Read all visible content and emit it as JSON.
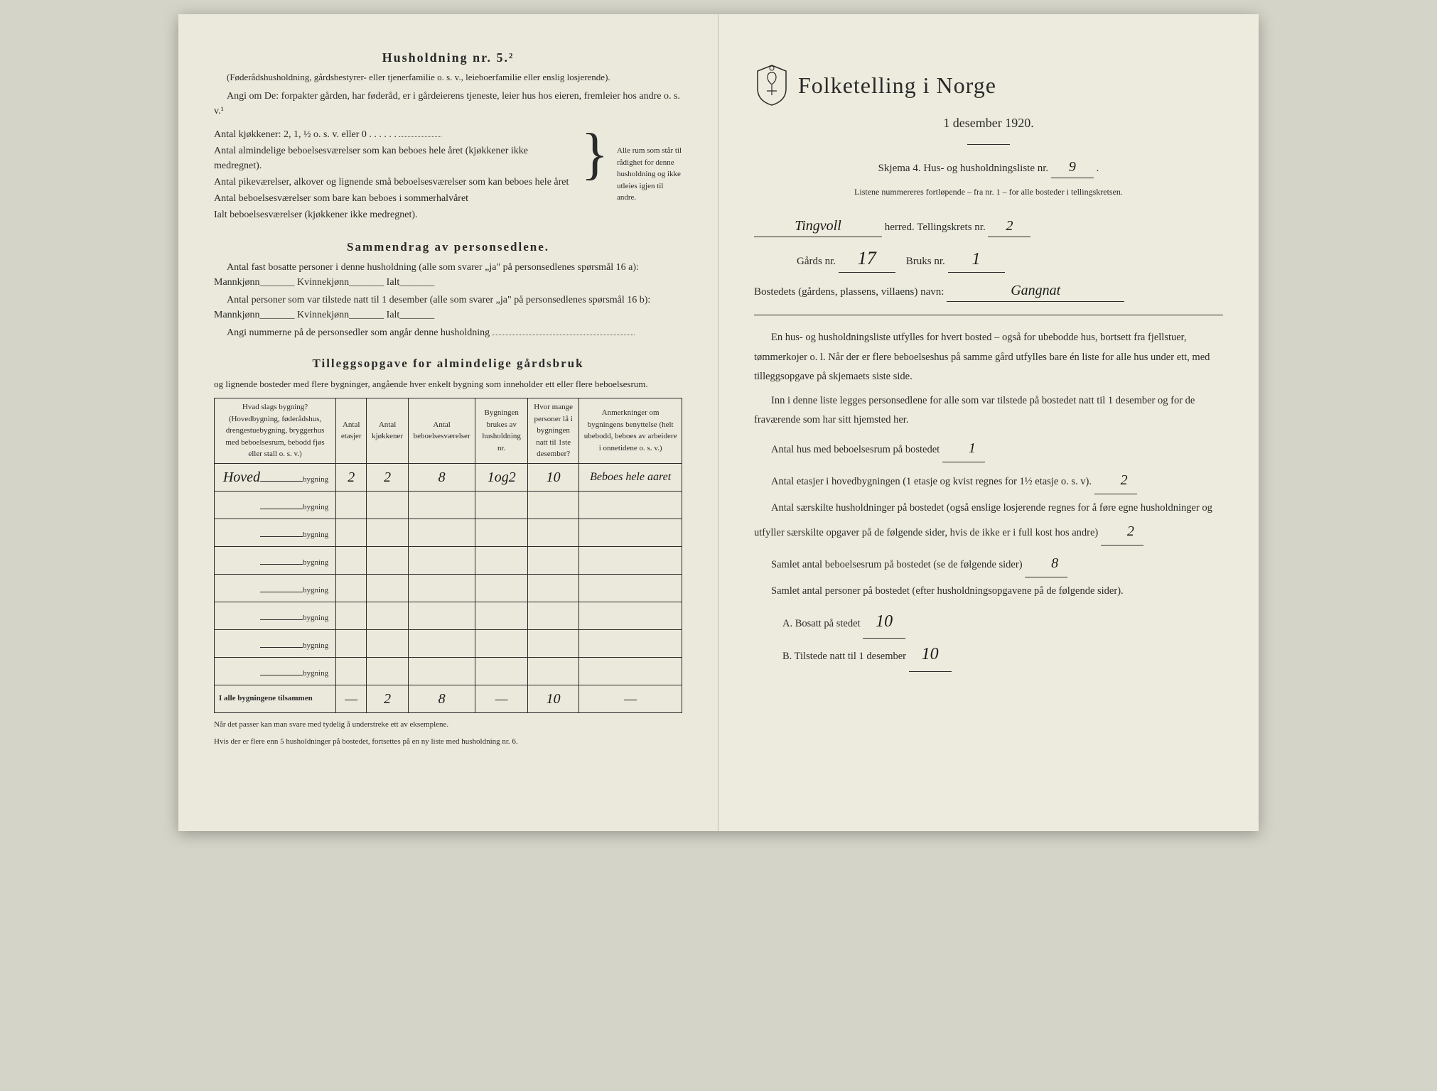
{
  "left": {
    "household_heading": "Husholdning nr. 5.²",
    "household_sub": "(Føderådshusholdning, gårdsbestyrer- eller tjenerfamilie o. s. v., leieboerfamilie eller enslig losjerende).",
    "angi_line": "Angi om De:  forpakter gården, har føderåd, er i gårdeierens tjeneste, leier hus hos eieren, fremleier hos andre o. s. v.¹",
    "kitchen_line": "Antal kjøkkener: 2, 1, ½ o. s. v. eller 0",
    "rooms_lines": [
      "Antal almindelige beboelsesværelser som kan beboes hele året (kjøkkener ikke medregnet).",
      "Antal pikeværelser, alkover og lignende små beboelsesværelser som kan beboes hele året",
      "Antal beboelsesværelser som bare kan beboes i sommerhalvåret",
      "Ialt beboelsesværelser (kjøkkener ikke medregnet)."
    ],
    "brace_text": "Alle rum som står til rådighet for denne husholdning og ikke utleies igjen til andre.",
    "summary_heading": "Sammendrag av personsedlene.",
    "summary_p1": "Antal fast bosatte personer i denne husholdning (alle som svarer „ja\" på personsedlenes spørsmål 16 a): Mannkjønn_______ Kvinnekjønn_______ Ialt_______",
    "summary_p2": "Antal personer som var tilstede natt til 1 desember (alle som svarer „ja\" på personsedlenes spørsmål 16 b): Mannkjønn_______ Kvinnekjønn_______ Ialt_______",
    "summary_p3": "Angi nummerne på de personsedler som angår denne husholdning",
    "tillegg_heading": "Tilleggsopgave for almindelige gårdsbruk",
    "tillegg_sub": "og lignende bosteder med flere bygninger, angående hver enkelt bygning som inneholder ett eller flere beboelsesrum.",
    "table": {
      "headers": [
        "Hvad slags bygning?\n(Hovedbygning, føderådshus, drengestuebygning, bryggerhus med beboelsesrum, bebodd fjøs eller stall o. s. v.)",
        "Antal etasjer",
        "Antal kjøkkener",
        "Antal beboelsesværelser",
        "Bygningen brukes av husholdning nr.",
        "Hvor mange personer lå i bygningen natt til 1ste desember?",
        "Anmerkninger om bygningens benyttelse (helt ubebodd, beboes av arbeidere i onnetidene o. s. v.)"
      ],
      "rows": [
        {
          "label": "Hoved",
          "suffix": "bygning",
          "etasjer": "2",
          "kjokken": "2",
          "vaer": "8",
          "hush": "1og2",
          "pers": "10",
          "anm": "Beboes hele aaret"
        },
        {
          "label": "",
          "suffix": "bygning",
          "etasjer": "",
          "kjokken": "",
          "vaer": "",
          "hush": "",
          "pers": "",
          "anm": ""
        },
        {
          "label": "",
          "suffix": "bygning",
          "etasjer": "",
          "kjokken": "",
          "vaer": "",
          "hush": "",
          "pers": "",
          "anm": ""
        },
        {
          "label": "",
          "suffix": "bygning",
          "etasjer": "",
          "kjokken": "",
          "vaer": "",
          "hush": "",
          "pers": "",
          "anm": ""
        },
        {
          "label": "",
          "suffix": "bygning",
          "etasjer": "",
          "kjokken": "",
          "vaer": "",
          "hush": "",
          "pers": "",
          "anm": ""
        },
        {
          "label": "",
          "suffix": "bygning",
          "etasjer": "",
          "kjokken": "",
          "vaer": "",
          "hush": "",
          "pers": "",
          "anm": ""
        },
        {
          "label": "",
          "suffix": "bygning",
          "etasjer": "",
          "kjokken": "",
          "vaer": "",
          "hush": "",
          "pers": "",
          "anm": ""
        },
        {
          "label": "",
          "suffix": "bygning",
          "etasjer": "",
          "kjokken": "",
          "vaer": "",
          "hush": "",
          "pers": "",
          "anm": ""
        }
      ],
      "totals_label": "I alle bygningene tilsammen",
      "totals": {
        "etasjer": "—",
        "kjokken": "2",
        "vaer": "8",
        "hush": "—",
        "pers": "10",
        "anm": "—"
      }
    },
    "footnote1": "Når det passer kan man svare med tydelig å understreke ett av eksemplene.",
    "footnote2": "Hvis der er flere enn 5 husholdninger på bostedet, fortsettes på en ny liste med husholdning nr. 6."
  },
  "right": {
    "main_title": "Folketelling i Norge",
    "subtitle": "1 desember 1920.",
    "skjema_line_prefix": "Skjema 4.  Hus- og husholdningsliste nr.",
    "skjema_nr": "9",
    "list_note": "Listene nummereres fortløpende – fra nr. 1 – for alle bosteder i tellingskretsen.",
    "herred_value": "Tingvoll",
    "herred_label": "herred.   Tellingskrets nr.",
    "krets_nr": "2",
    "gards_label": "Gårds nr.",
    "gards_nr": "17",
    "bruks_label": "Bruks nr.",
    "bruks_nr": "1",
    "bosted_label": "Bostedets (gårdens, plassens, villaens) navn:",
    "bosted_value": "Gangnat",
    "instr1": "En hus- og husholdningsliste utfylles for hvert bosted – også for ubebodde hus, bortsett fra fjellstuer, tømmerkojer o. l.  Når der er flere beboelseshus på samme gård utfylles bare én liste for alle hus under ett, med tilleggsopgave på skjemaets siste side.",
    "instr2": "Inn i denne liste legges personsedlene for alle som var tilstede på bostedet natt til 1 desember og for de fraværende som har sitt hjemsted her.",
    "q1_label": "Antal hus med beboelsesrum på bostedet",
    "q1_val": "1",
    "q2_label_a": "Antal etasjer i hovedbygningen (1 etasje og kvist regnes for 1½ etasje o. s. v).",
    "q2_val": "2",
    "q3_label": "Antal særskilte husholdninger på bostedet (også enslige losjerende regnes for å føre egne husholdninger og utfyller særskilte opgaver på de følgende sider, hvis de ikke er i full kost hos andre)",
    "q3_val": "2",
    "q4_label": "Samlet antal beboelsesrum på bostedet (se de følgende sider)",
    "q4_val": "8",
    "q5_label": "Samlet antal personer på bostedet (efter husholdningsopgavene på de følgende sider).",
    "qA_label": "A.  Bosatt på stedet",
    "qA_val": "10",
    "qB_label": "B.  Tilstede natt til 1 desember",
    "qB_val": "10"
  },
  "colors": {
    "paper": "#ebe9db",
    "ink": "#2a2a2a",
    "handwriting": "#1a1a1a"
  }
}
